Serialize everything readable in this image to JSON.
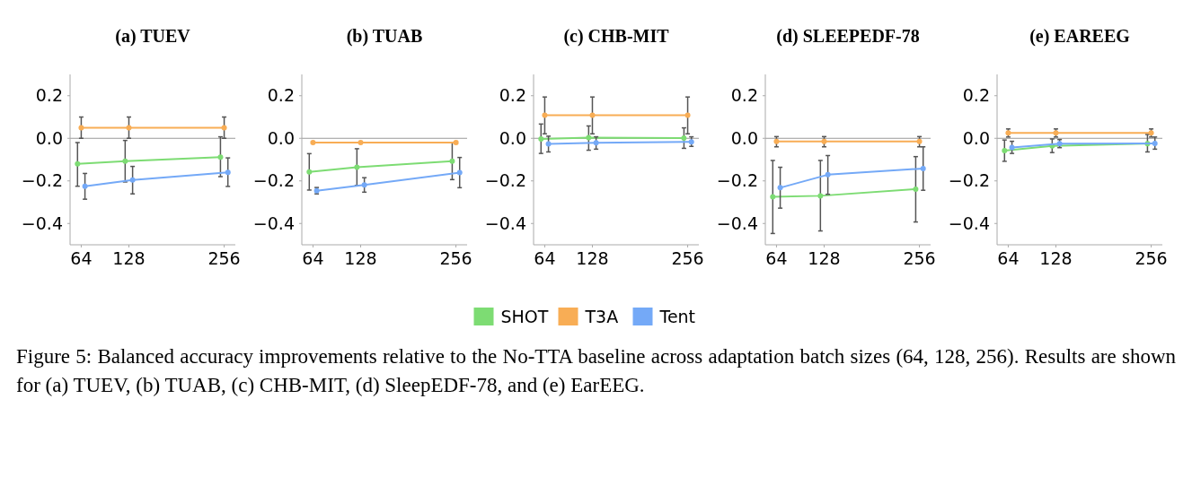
{
  "chart_data": [
    {
      "type": "line",
      "title": "(a) TUEV",
      "xlim": [
        49,
        271
      ],
      "ylim": [
        -0.5,
        0.3
      ],
      "xticks": [
        64,
        128,
        256
      ],
      "yticks": [
        {
          "value": -0.4,
          "label": "−0.4"
        },
        {
          "value": -0.2,
          "label": "−0.2"
        },
        {
          "value": 0,
          "label": "0.0"
        },
        {
          "value": 0.2,
          "label": "0.2"
        }
      ],
      "marker": "circle",
      "grid": false,
      "legend": "bottom",
      "ref_lines": [
        {
          "axis": "y",
          "value": 0,
          "color": "#999999"
        }
      ],
      "annotations": [
        "Figure 5: Balanced accuracy improvements relative to the No-TTA baseline across adaptation batch sizes (64, 128, 256). Results are shown for (a) TUEV, (b) TUAB, (c) CHB-MIT, (d) SleepEDF-78, and (e) EarEEG."
      ],
      "series": [
        {
          "name": "SHOT",
          "color": "#7ddc73",
          "x": [
            59,
            123,
            251
          ],
          "values": [
            -0.12,
            -0.107,
            -0.088
          ],
          "errors": [
            [
              -0.225,
              -0.02
            ],
            [
              -0.205,
              -0.01
            ],
            [
              -0.18,
              0.007
            ]
          ]
        },
        {
          "name": "T3A",
          "color": "#f8ad55",
          "x": [
            64,
            128,
            256
          ],
          "values": [
            0.05,
            0.05,
            0.05
          ],
          "errors": [
            [
              0.0,
              0.1
            ],
            [
              0.0,
              0.1
            ],
            [
              0.0,
              0.1
            ]
          ]
        },
        {
          "name": "Tent",
          "color": "#74a9f7",
          "x": [
            69,
            133,
            261
          ],
          "values": [
            -0.225,
            -0.196,
            -0.16
          ],
          "errors": [
            [
              -0.286,
              -0.165
            ],
            [
              -0.261,
              -0.132
            ],
            [
              -0.226,
              -0.092
            ]
          ]
        }
      ]
    },
    {
      "type": "line",
      "title": "(b) TUAB",
      "xlim": [
        49,
        271
      ],
      "ylim": [
        -0.5,
        0.3
      ],
      "xticks": [
        64,
        128,
        256
      ],
      "yticks": [
        {
          "value": -0.4,
          "label": "−0.4"
        },
        {
          "value": -0.2,
          "label": "−0.2"
        },
        {
          "value": 0,
          "label": "0.0"
        },
        {
          "value": 0.2,
          "label": "0.2"
        }
      ],
      "marker": "circle",
      "grid": false,
      "ref_lines": [
        {
          "axis": "y",
          "value": 0,
          "color": "#999999"
        }
      ],
      "series": [
        {
          "color": "#7ddc73",
          "x": [
            59,
            123,
            251
          ],
          "values": [
            -0.158,
            -0.136,
            -0.107
          ],
          "errors": [
            [
              -0.243,
              -0.072
            ],
            [
              -0.221,
              -0.049
            ],
            [
              -0.194,
              -0.021
            ]
          ]
        },
        {
          "color": "#f8ad55",
          "x": [
            64,
            128,
            256
          ],
          "values": [
            -0.02,
            -0.02,
            -0.02
          ],
          "errors": [
            [
              -0.025,
              -0.015
            ],
            [
              -0.025,
              -0.015
            ],
            [
              -0.025,
              -0.015
            ]
          ]
        },
        {
          "color": "#74a9f7",
          "x": [
            69,
            133,
            261
          ],
          "values": [
            -0.246,
            -0.219,
            -0.161
          ],
          "errors": [
            [
              -0.261,
              -0.231
            ],
            [
              -0.253,
              -0.185
            ],
            [
              -0.232,
              -0.09
            ]
          ]
        }
      ]
    },
    {
      "type": "line",
      "title": "(c) CHB-MIT",
      "xlim": [
        49,
        271
      ],
      "ylim": [
        -0.5,
        0.3
      ],
      "xticks": [
        64,
        128,
        256
      ],
      "yticks": [
        {
          "value": -0.4,
          "label": "−0.4"
        },
        {
          "value": -0.2,
          "label": "−0.2"
        },
        {
          "value": 0,
          "label": "0.0"
        },
        {
          "value": 0.2,
          "label": "0.2"
        }
      ],
      "marker": "circle",
      "grid": false,
      "ref_lines": [
        {
          "axis": "y",
          "value": 0,
          "color": "#999999"
        }
      ],
      "series": [
        {
          "color": "#7ddc73",
          "x": [
            59,
            123,
            251
          ],
          "values": [
            -0.003,
            0.003,
            0.001
          ],
          "errors": [
            [
              -0.071,
              0.067
            ],
            [
              -0.056,
              0.058
            ],
            [
              -0.047,
              0.049
            ]
          ]
        },
        {
          "color": "#f8ad55",
          "x": [
            64,
            128,
            256
          ],
          "values": [
            0.108,
            0.108,
            0.108
          ],
          "errors": [
            [
              0.021,
              0.194
            ],
            [
              0.021,
              0.194
            ],
            [
              0.021,
              0.194
            ]
          ]
        },
        {
          "color": "#74a9f7",
          "x": [
            69,
            133,
            261
          ],
          "values": [
            -0.026,
            -0.021,
            -0.017
          ],
          "errors": [
            [
              -0.064,
              0.01
            ],
            [
              -0.051,
              0.007
            ],
            [
              -0.038,
              0.007
            ]
          ]
        }
      ]
    },
    {
      "type": "line",
      "title": "(d) SLEEPEDF-78",
      "xlim": [
        49,
        271
      ],
      "ylim": [
        -0.5,
        0.3
      ],
      "xticks": [
        64,
        128,
        256
      ],
      "yticks": [
        {
          "value": -0.4,
          "label": "−0.4"
        },
        {
          "value": -0.2,
          "label": "−0.2"
        },
        {
          "value": 0,
          "label": "0.0"
        },
        {
          "value": 0.2,
          "label": "0.2"
        }
      ],
      "marker": "circle",
      "grid": false,
      "ref_lines": [
        {
          "axis": "y",
          "value": 0,
          "color": "#999999"
        }
      ],
      "series": [
        {
          "color": "#7ddc73",
          "x": [
            59,
            123,
            251
          ],
          "values": [
            -0.275,
            -0.27,
            -0.239
          ],
          "errors": [
            [
              -0.447,
              -0.104
            ],
            [
              -0.435,
              -0.104
            ],
            [
              -0.393,
              -0.086
            ]
          ]
        },
        {
          "color": "#f8ad55",
          "x": [
            64,
            128,
            256
          ],
          "values": [
            -0.015,
            -0.015,
            -0.015
          ],
          "errors": [
            [
              -0.04,
              0.008
            ],
            [
              -0.04,
              0.008
            ],
            [
              -0.04,
              0.008
            ]
          ]
        },
        {
          "color": "#74a9f7",
          "x": [
            69,
            133,
            261
          ],
          "values": [
            -0.232,
            -0.171,
            -0.142
          ],
          "errors": [
            [
              -0.328,
              -0.136
            ],
            [
              -0.263,
              -0.081
            ],
            [
              -0.244,
              -0.04
            ]
          ]
        }
      ]
    },
    {
      "type": "line",
      "title": "(e) EAREEG",
      "xlim": [
        49,
        271
      ],
      "ylim": [
        -0.5,
        0.3
      ],
      "xticks": [
        64,
        128,
        256
      ],
      "yticks": [
        {
          "value": -0.4,
          "label": "−0.4"
        },
        {
          "value": -0.2,
          "label": "−0.2"
        },
        {
          "value": 0,
          "label": "0.0"
        },
        {
          "value": 0.2,
          "label": "0.2"
        }
      ],
      "marker": "circle",
      "grid": false,
      "ref_lines": [
        {
          "axis": "y",
          "value": 0,
          "color": "#999999"
        }
      ],
      "series": [
        {
          "color": "#7ddc73",
          "x": [
            59,
            123,
            251
          ],
          "values": [
            -0.058,
            -0.036,
            -0.025
          ],
          "errors": [
            [
              -0.108,
              -0.008
            ],
            [
              -0.067,
              -0.003
            ],
            [
              -0.064,
              0.018
            ]
          ]
        },
        {
          "color": "#f8ad55",
          "x": [
            64,
            128,
            256
          ],
          "values": [
            0.025,
            0.025,
            0.025
          ],
          "errors": [
            [
              0.006,
              0.044
            ],
            [
              0.006,
              0.044
            ],
            [
              0.006,
              0.044
            ]
          ]
        },
        {
          "color": "#74a9f7",
          "x": [
            69,
            133,
            261
          ],
          "values": [
            -0.043,
            -0.025,
            -0.024
          ],
          "errors": [
            [
              -0.071,
              -0.014
            ],
            [
              -0.044,
              -0.006
            ],
            [
              -0.051,
              0.006
            ]
          ]
        }
      ]
    }
  ]
}
